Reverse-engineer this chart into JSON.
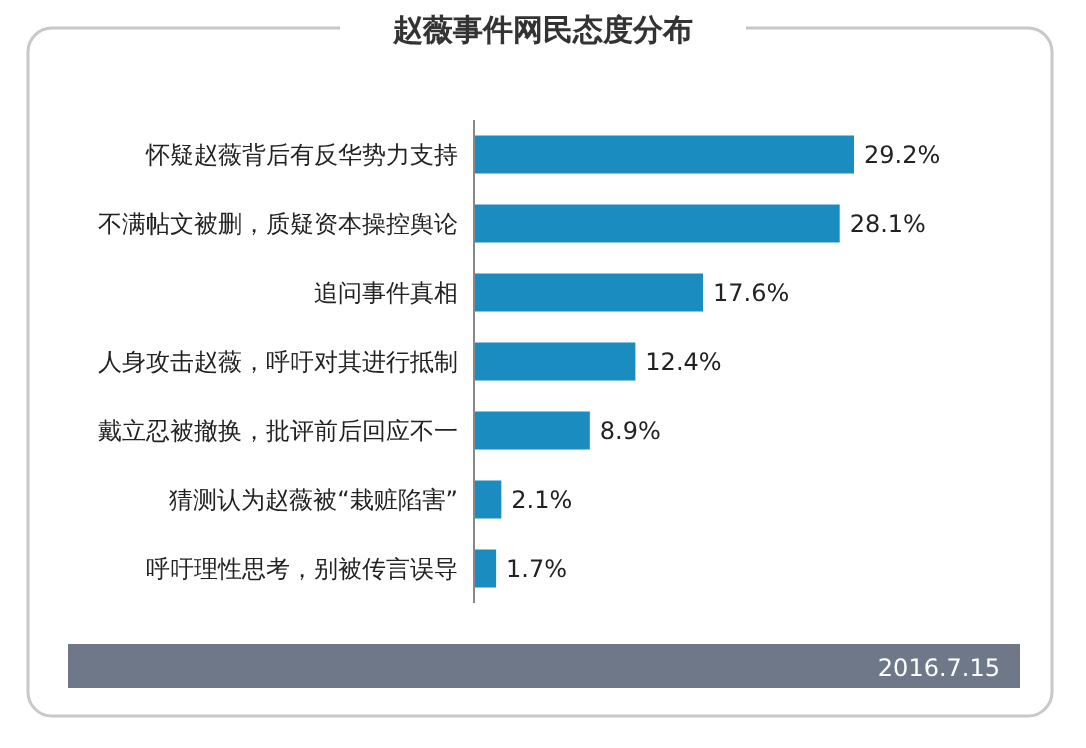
{
  "chart_data": {
    "type": "bar",
    "orientation": "horizontal",
    "title": "赵薇事件网民态度分布",
    "categories": [
      "怀疑赵薇背后有反华势力支持",
      "不满帖文被删，质疑资本操控舆论",
      "追问事件真相",
      "人身攻击赵薇，呼吁对其进行抵制",
      "戴立忍被撤换，批评前后回应不一",
      "猜测认为赵薇被“栽赃陷害”",
      "呼吁理性思考，别被传言误导"
    ],
    "values": [
      29.2,
      28.1,
      17.6,
      12.4,
      8.9,
      2.1,
      1.7
    ],
    "value_labels": [
      "29.2%",
      "28.1%",
      "17.6%",
      "12.4%",
      "8.9%",
      "2.1%",
      "1.7%"
    ],
    "color": "#1a8cbf",
    "annotations": [
      "2016.7.15"
    ]
  }
}
